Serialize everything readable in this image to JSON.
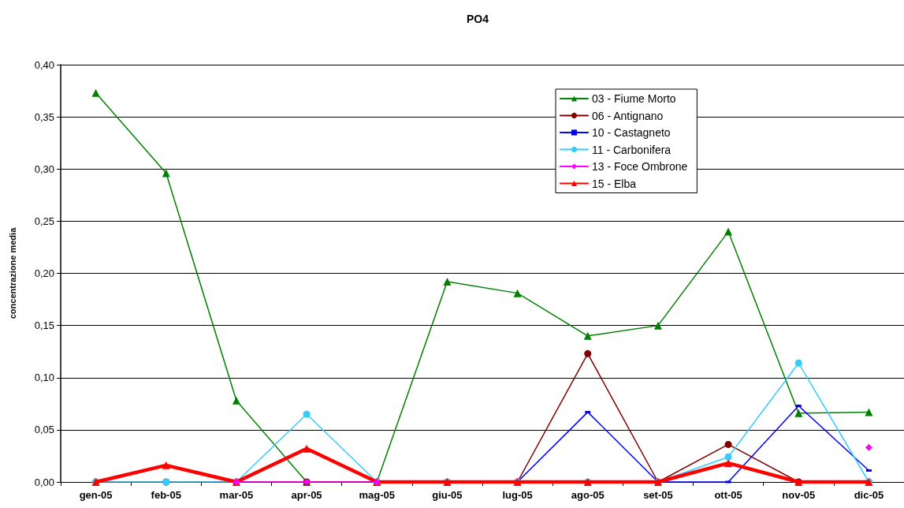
{
  "chart_data": {
    "type": "line",
    "title": "PO4",
    "ylabel": "concentrazione media",
    "categories": [
      "gen-05",
      "feb-05",
      "mar-05",
      "apr-05",
      "mag-05",
      "giu-05",
      "lug-05",
      "ago-05",
      "set-05",
      "ott-05",
      "nov-05",
      "dic-05"
    ],
    "series": [
      {
        "name": "03 - Fiume Morto",
        "color": "#008000",
        "marker": "triangle",
        "values": [
          0.373,
          0.296,
          0.078,
          0,
          0,
          0.192,
          0.181,
          0.14,
          0.15,
          0.24,
          0.066,
          0.067
        ]
      },
      {
        "name": "06 - Antignano",
        "color": "#800000",
        "marker": "circle",
        "values": [
          0,
          0,
          0,
          0,
          0,
          0,
          0,
          0.123,
          0,
          0.036,
          0,
          0
        ]
      },
      {
        "name": "10 - Castagneto",
        "color": "#0000ff",
        "marker": "square",
        "values": [
          null,
          null,
          null,
          null,
          null,
          null,
          0,
          0.067,
          0,
          0,
          0.073,
          0.011
        ]
      },
      {
        "name": "11 - Carbonifera",
        "color": "#33ccff",
        "marker": "circle",
        "values": [
          0,
          0,
          0,
          0.065,
          0,
          0,
          0,
          0,
          0,
          0.024,
          0.114,
          0
        ]
      },
      {
        "name": "13 - Foce Ombrone",
        "color": "#ff00ff",
        "marker": "diamond",
        "values": [
          null,
          null,
          0,
          0,
          0,
          null,
          null,
          null,
          null,
          null,
          null,
          0.033
        ]
      },
      {
        "name": "15 - Elba",
        "color": "#ff0000",
        "marker": "triangle",
        "values": [
          0,
          0.016,
          0,
          0.032,
          0,
          0,
          0,
          0,
          0,
          0.018,
          0,
          0
        ]
      }
    ],
    "ylim": [
      0,
      0.4
    ],
    "yticks": [
      {
        "value": 0,
        "label": "0,00"
      },
      {
        "value": 0.05,
        "label": "0,05"
      },
      {
        "value": 0.1,
        "label": "0,10"
      },
      {
        "value": 0.15,
        "label": "0,15"
      },
      {
        "value": 0.2,
        "label": "0,20"
      },
      {
        "value": 0.25,
        "label": "0,25"
      },
      {
        "value": 0.3,
        "label": "0,30"
      },
      {
        "value": 0.35,
        "label": "0,35"
      },
      {
        "value": 0.4,
        "label": "0,40"
      }
    ],
    "grid": "y",
    "legend": "top right",
    "line_style": "solid"
  }
}
